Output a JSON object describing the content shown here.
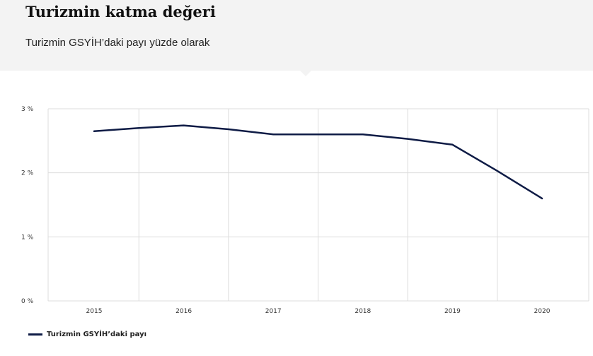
{
  "header": {
    "title": "Turizmin katma değeri",
    "subtitle": "Turizmin GSYİH’daki payı yüzde olarak"
  },
  "colors": {
    "series": "#0e1b45",
    "grid": "#dcdcdc",
    "header_bg": "#f3f3f3"
  },
  "chart_data": {
    "type": "line",
    "title": "Turizmin katma değeri",
    "subtitle": "Turizmin GSYİH’daki payı yüzde olarak",
    "x": [
      "2015",
      "2016",
      "2017",
      "2018",
      "2019",
      "2020"
    ],
    "x_values": [
      2015,
      2015.5,
      2016,
      2016.5,
      2017,
      2017.5,
      2018,
      2018.5,
      2019,
      2019.5,
      2020
    ],
    "series": [
      {
        "name": "Turizmin GSYİH’daki payı",
        "values": [
          2.65,
          2.7,
          2.74,
          2.68,
          2.6,
          2.6,
          2.6,
          2.53,
          2.44,
          2.03,
          1.6
        ]
      }
    ],
    "ylim": [
      0,
      3
    ],
    "y_ticks": [
      0,
      1,
      2,
      3
    ],
    "y_tick_labels": [
      "0 %",
      "1 %",
      "2 %",
      "3 %"
    ],
    "xlabel": "",
    "ylabel": "",
    "grid": true,
    "legend": "bottom-left"
  }
}
